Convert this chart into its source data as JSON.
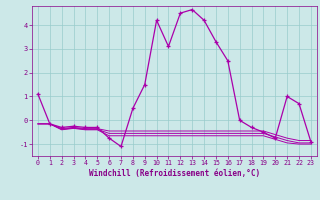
{
  "xlabel": "Windchill (Refroidissement éolien,°C)",
  "xlim": [
    -0.5,
    23.5
  ],
  "ylim": [
    -1.5,
    4.8
  ],
  "yticks": [
    -1,
    0,
    1,
    2,
    3,
    4
  ],
  "xticks": [
    0,
    1,
    2,
    3,
    4,
    5,
    6,
    7,
    8,
    9,
    10,
    11,
    12,
    13,
    14,
    15,
    16,
    17,
    18,
    19,
    20,
    21,
    22,
    23
  ],
  "bg_color": "#cce8e8",
  "line_color": "#aa00aa",
  "grid_color": "#99cccc",
  "main_line": [
    1.1,
    -0.15,
    -0.3,
    -0.25,
    -0.3,
    -0.3,
    -0.75,
    -1.1,
    0.5,
    1.5,
    4.2,
    3.1,
    4.5,
    4.65,
    4.2,
    3.3,
    2.5,
    0.0,
    -0.3,
    -0.5,
    -0.75,
    1.0,
    0.7,
    -0.9
  ],
  "line2": [
    -0.15,
    -0.15,
    -0.35,
    -0.3,
    -0.35,
    -0.35,
    -0.45,
    -0.45,
    -0.45,
    -0.45,
    -0.45,
    -0.45,
    -0.45,
    -0.45,
    -0.45,
    -0.45,
    -0.45,
    -0.45,
    -0.45,
    -0.45,
    -0.6,
    -0.75,
    -0.85,
    -0.85
  ],
  "line3": [
    -0.15,
    -0.15,
    -0.38,
    -0.32,
    -0.38,
    -0.38,
    -0.55,
    -0.55,
    -0.55,
    -0.55,
    -0.55,
    -0.55,
    -0.55,
    -0.55,
    -0.55,
    -0.55,
    -0.55,
    -0.55,
    -0.55,
    -0.55,
    -0.7,
    -0.85,
    -0.95,
    -0.95
  ],
  "line4": [
    -0.15,
    -0.15,
    -0.4,
    -0.34,
    -0.4,
    -0.4,
    -0.65,
    -0.65,
    -0.65,
    -0.65,
    -0.65,
    -0.65,
    -0.65,
    -0.65,
    -0.65,
    -0.65,
    -0.65,
    -0.65,
    -0.65,
    -0.65,
    -0.8,
    -0.95,
    -1.0,
    -1.0
  ],
  "tick_color": "#880088",
  "xlabel_fontsize": 5.5,
  "tick_fontsize": 4.8,
  "figsize": [
    3.2,
    2.0
  ],
  "dpi": 100
}
